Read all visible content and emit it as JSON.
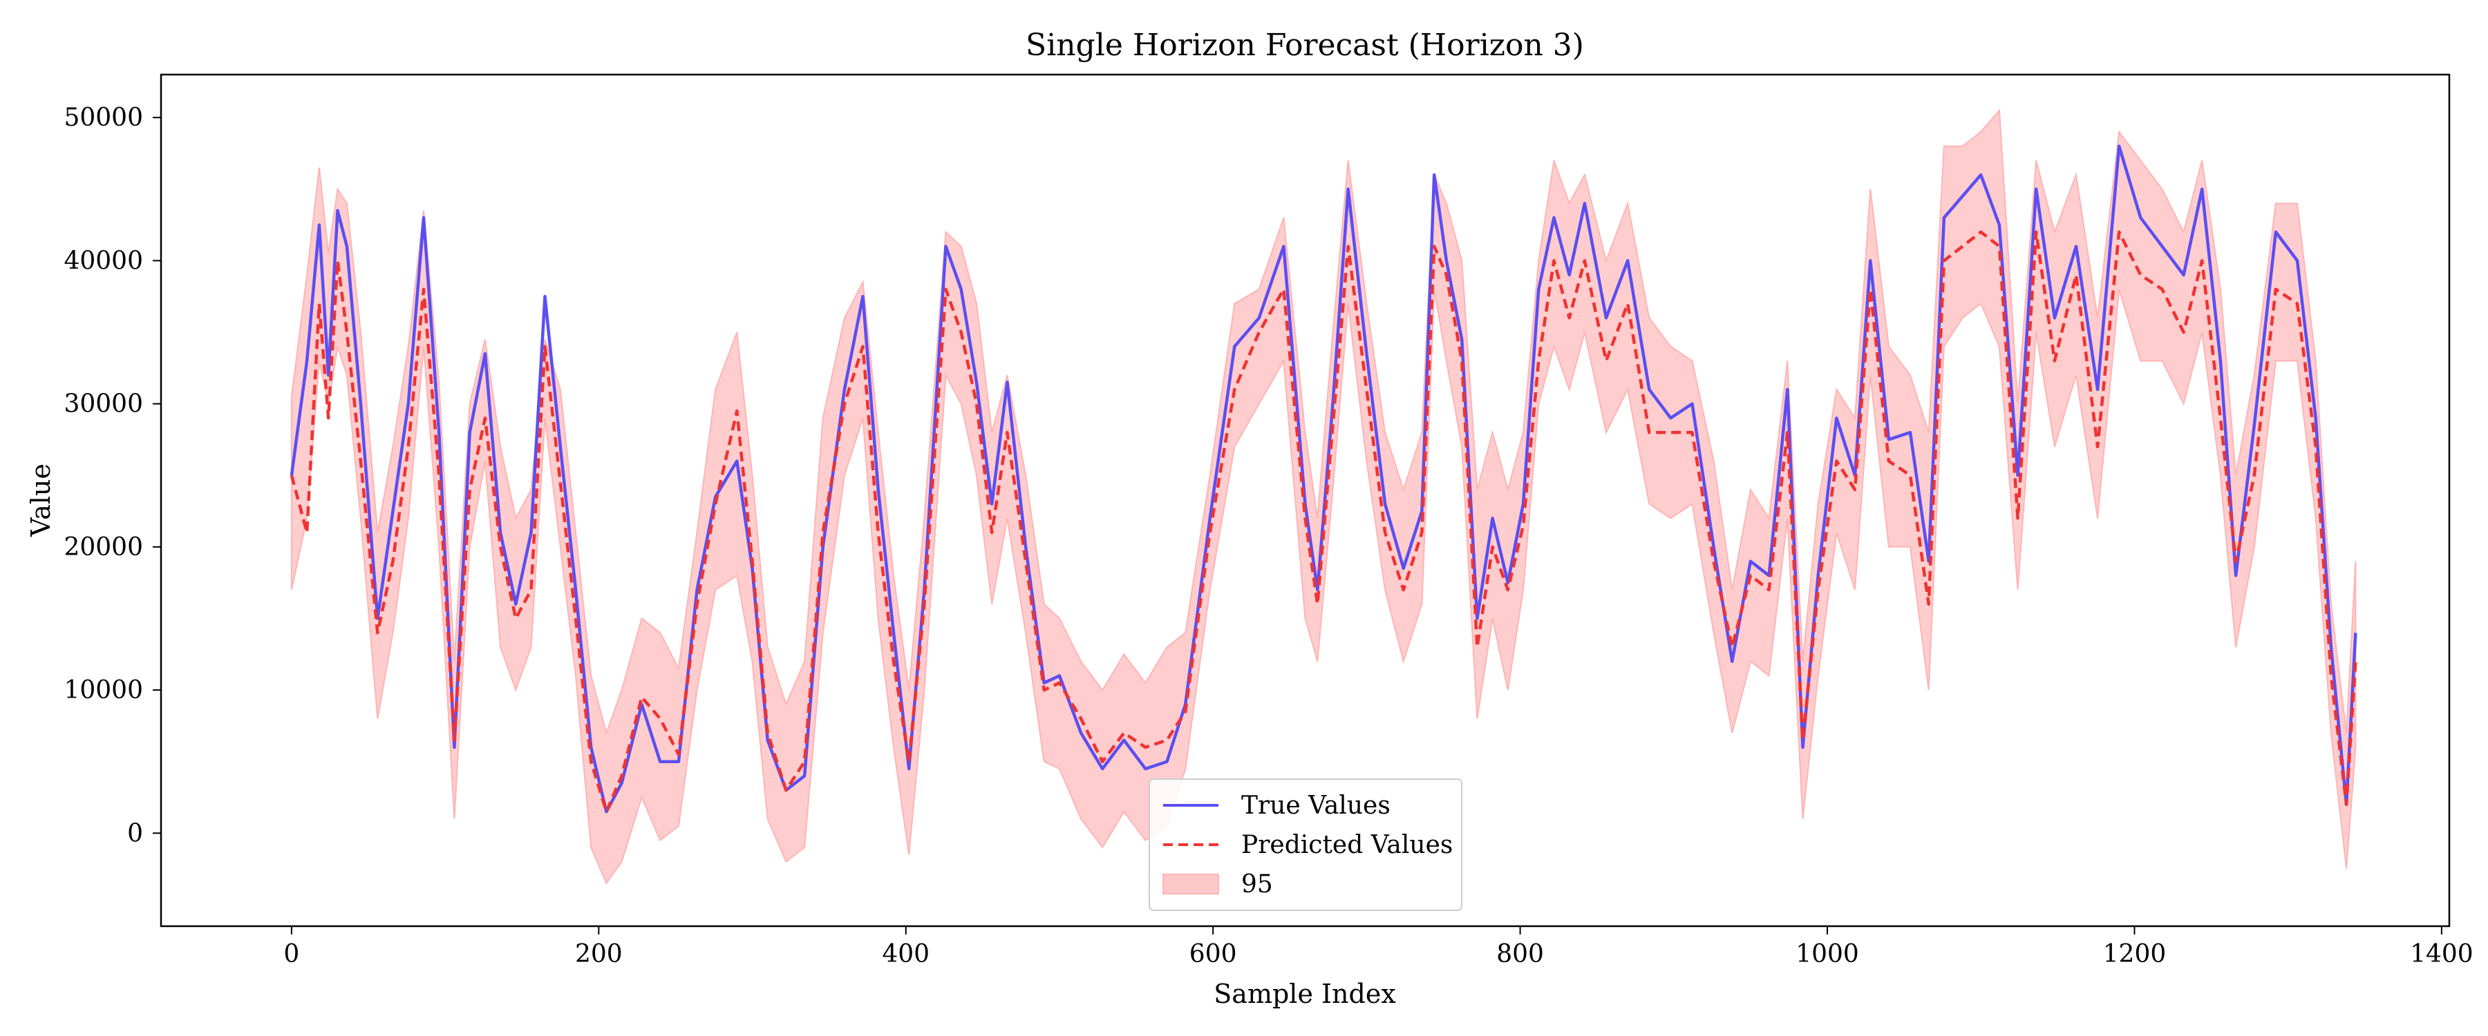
{
  "chart_data": {
    "type": "line",
    "title": "Single Horizon Forecast (Horizon 3)",
    "xlabel": "Sample Index",
    "ylabel": "Value",
    "xlim": [
      -85,
      1405
    ],
    "ylim": [
      -6500,
      53000
    ],
    "xticks": [
      0,
      200,
      400,
      600,
      800,
      1000,
      1200,
      1400
    ],
    "yticks": [
      0,
      10000,
      20000,
      30000,
      40000,
      50000
    ],
    "grid": false,
    "legend_position": "lower center",
    "legend": [
      "True Values",
      "Predicted Values",
      "95"
    ],
    "colors": {
      "true": "#5b4ff2",
      "predicted": "#f03232",
      "band_fill": "#ffc8c8",
      "band_edge": "#ffb4b4"
    },
    "x": [
      0,
      10,
      18,
      24,
      30,
      36,
      45,
      56,
      66,
      76,
      86,
      96,
      106,
      116,
      126,
      136,
      146,
      156,
      165,
      175,
      185,
      195,
      205,
      215,
      228,
      240,
      252,
      264,
      276,
      290,
      300,
      310,
      322,
      334,
      346,
      360,
      372,
      382,
      392,
      402,
      412,
      426,
      436,
      446,
      456,
      466,
      478,
      490,
      500,
      514,
      528,
      542,
      556,
      570,
      582,
      598,
      614,
      630,
      646,
      660,
      668,
      678,
      688,
      700,
      712,
      724,
      736,
      744,
      752,
      762,
      772,
      782,
      792,
      802,
      812,
      822,
      832,
      842,
      856,
      870,
      884,
      898,
      912,
      926,
      938,
      950,
      962,
      974,
      984,
      994,
      1006,
      1018,
      1028,
      1040,
      1054,
      1066,
      1076,
      1088,
      1100,
      1112,
      1124,
      1136,
      1148,
      1162,
      1176,
      1190,
      1204,
      1218,
      1232,
      1244,
      1256,
      1266,
      1278,
      1292,
      1306,
      1318,
      1328,
      1338,
      1344
    ],
    "series": [
      {
        "name": "True Values",
        "values": [
          25000,
          33000,
          42500,
          32000,
          43500,
          41000,
          30000,
          15000,
          22500,
          30000,
          43000,
          28000,
          6000,
          28000,
          33500,
          21000,
          16000,
          21000,
          37500,
          27000,
          17000,
          6000,
          1500,
          3500,
          9000,
          5000,
          5000,
          17000,
          23500,
          26000,
          18500,
          6500,
          3000,
          4000,
          20000,
          31000,
          37500,
          24000,
          14000,
          4500,
          17000,
          41000,
          38000,
          31500,
          23000,
          31500,
          20000,
          10500,
          11000,
          7000,
          4500,
          6500,
          4500,
          5000,
          9000,
          22000,
          34000,
          36000,
          41000,
          23000,
          17000,
          30000,
          45000,
          33500,
          23000,
          18500,
          22500,
          46000,
          40000,
          34500,
          15000,
          22000,
          17500,
          23000,
          38000,
          43000,
          39000,
          44000,
          36000,
          40000,
          31000,
          29000,
          30000,
          20000,
          12000,
          19000,
          18000,
          31000,
          6000,
          18000,
          29000,
          25000,
          40000,
          27500,
          28000,
          19000,
          43000,
          44500,
          46000,
          42500,
          25000,
          45000,
          36000,
          41000,
          31000,
          48000,
          43000,
          41000,
          39000,
          45000,
          33000,
          18000,
          28500,
          42000,
          40000,
          29000,
          13000,
          2000,
          14000
        ],
        "lower": [
          17000,
          22000,
          33000,
          30000,
          34000,
          32000,
          22000,
          8000,
          14000,
          22000,
          34000,
          20000,
          1000,
          20000,
          26000,
          13000,
          10000,
          13000,
          29000,
          20000,
          11000,
          -1000,
          -3500,
          -2000,
          2500,
          -500,
          500,
          10000,
          17000,
          18000,
          12000,
          1000,
          -2000,
          -1000,
          14000,
          25000,
          29000,
          15000,
          6000,
          -1500,
          10000,
          32000,
          30000,
          25000,
          16000,
          22000,
          14000,
          5000,
          4500,
          1000,
          -1000,
          1500,
          -500,
          500,
          4500,
          17000,
          27000,
          30000,
          33000,
          15000,
          12000,
          24000,
          37000,
          26000,
          17000,
          12000,
          16000,
          38000,
          33000,
          27000,
          8000,
          15000,
          10000,
          17000,
          30000,
          34000,
          31000,
          35000,
          28000,
          31000,
          23000,
          22000,
          23000,
          14000,
          7000,
          12000,
          11000,
          22000,
          1000,
          11000,
          21000,
          17000,
          32000,
          20000,
          20000,
          10000,
          34000,
          36000,
          37000,
          34000,
          17000,
          35000,
          27000,
          32000,
          22000,
          38000,
          33000,
          33000,
          30000,
          35000,
          25000,
          13000,
          20000,
          33000,
          33000,
          22000,
          7000,
          -2500,
          6000
        ],
        "upper": [
          30500,
          39000,
          46500,
          40500,
          45000,
          44000,
          35000,
          21000,
          27000,
          34000,
          43500,
          31500,
          12000,
          30000,
          34500,
          27000,
          22000,
          24000,
          34500,
          31000,
          21000,
          11000,
          7000,
          10000,
          15000,
          14000,
          11500,
          21000,
          31000,
          35000,
          25000,
          13000,
          9000,
          12000,
          29000,
          36000,
          38500,
          28000,
          18000,
          10000,
          22000,
          42000,
          41000,
          37000,
          28000,
          32000,
          25000,
          16000,
          15000,
          12000,
          10000,
          12500,
          10500,
          13000,
          14000,
          25000,
          37000,
          38000,
          43000,
          28000,
          22000,
          35000,
          47000,
          37000,
          28000,
          24000,
          28000,
          46000,
          44000,
          40000,
          24000,
          28000,
          24000,
          28000,
          40000,
          47000,
          44000,
          46000,
          40000,
          44000,
          36000,
          34000,
          33000,
          26000,
          17000,
          24000,
          22000,
          33000,
          12000,
          23000,
          31000,
          29000,
          45000,
          34000,
          32000,
          28000,
          48000,
          48000,
          49000,
          50500,
          30000,
          47000,
          42000,
          46000,
          36000,
          49000,
          47000,
          45000,
          42000,
          47000,
          38000,
          25000,
          32000,
          44000,
          44000,
          33000,
          16000,
          7000,
          19000
        ]
      },
      {
        "name": "Predicted Values",
        "values": [
          25000,
          21000,
          37000,
          29000,
          40000,
          35000,
          26000,
          14000,
          19000,
          27000,
          38000,
          25000,
          6500,
          24000,
          29000,
          20000,
          15000,
          17000,
          34000,
          24500,
          15000,
          5000,
          1500,
          4000,
          9500,
          8000,
          5500,
          16000,
          23000,
          29500,
          19000,
          7000,
          3000,
          5000,
          21000,
          30000,
          34000,
          21000,
          12000,
          5000,
          16000,
          38000,
          35000,
          30000,
          21000,
          28000,
          19000,
          10000,
          10500,
          8000,
          5000,
          7000,
          6000,
          6500,
          8500,
          21000,
          31000,
          35000,
          38000,
          22000,
          16000,
          28500,
          41000,
          31000,
          21000,
          17000,
          21000,
          41000,
          39000,
          33000,
          13000,
          20000,
          17000,
          21500,
          33000,
          40000,
          36000,
          40000,
          33000,
          37000,
          28000,
          28000,
          28000,
          19000,
          13000,
          18000,
          17000,
          28000,
          6500,
          17000,
          26000,
          24000,
          38000,
          26000,
          25000,
          16000,
          40000,
          41000,
          42000,
          41000,
          22000,
          42000,
          33000,
          39000,
          27000,
          42000,
          39000,
          38000,
          35000,
          40000,
          29000,
          19000,
          25000,
          38000,
          37000,
          27000,
          11000,
          2000,
          12000
        ]
      }
    ]
  }
}
